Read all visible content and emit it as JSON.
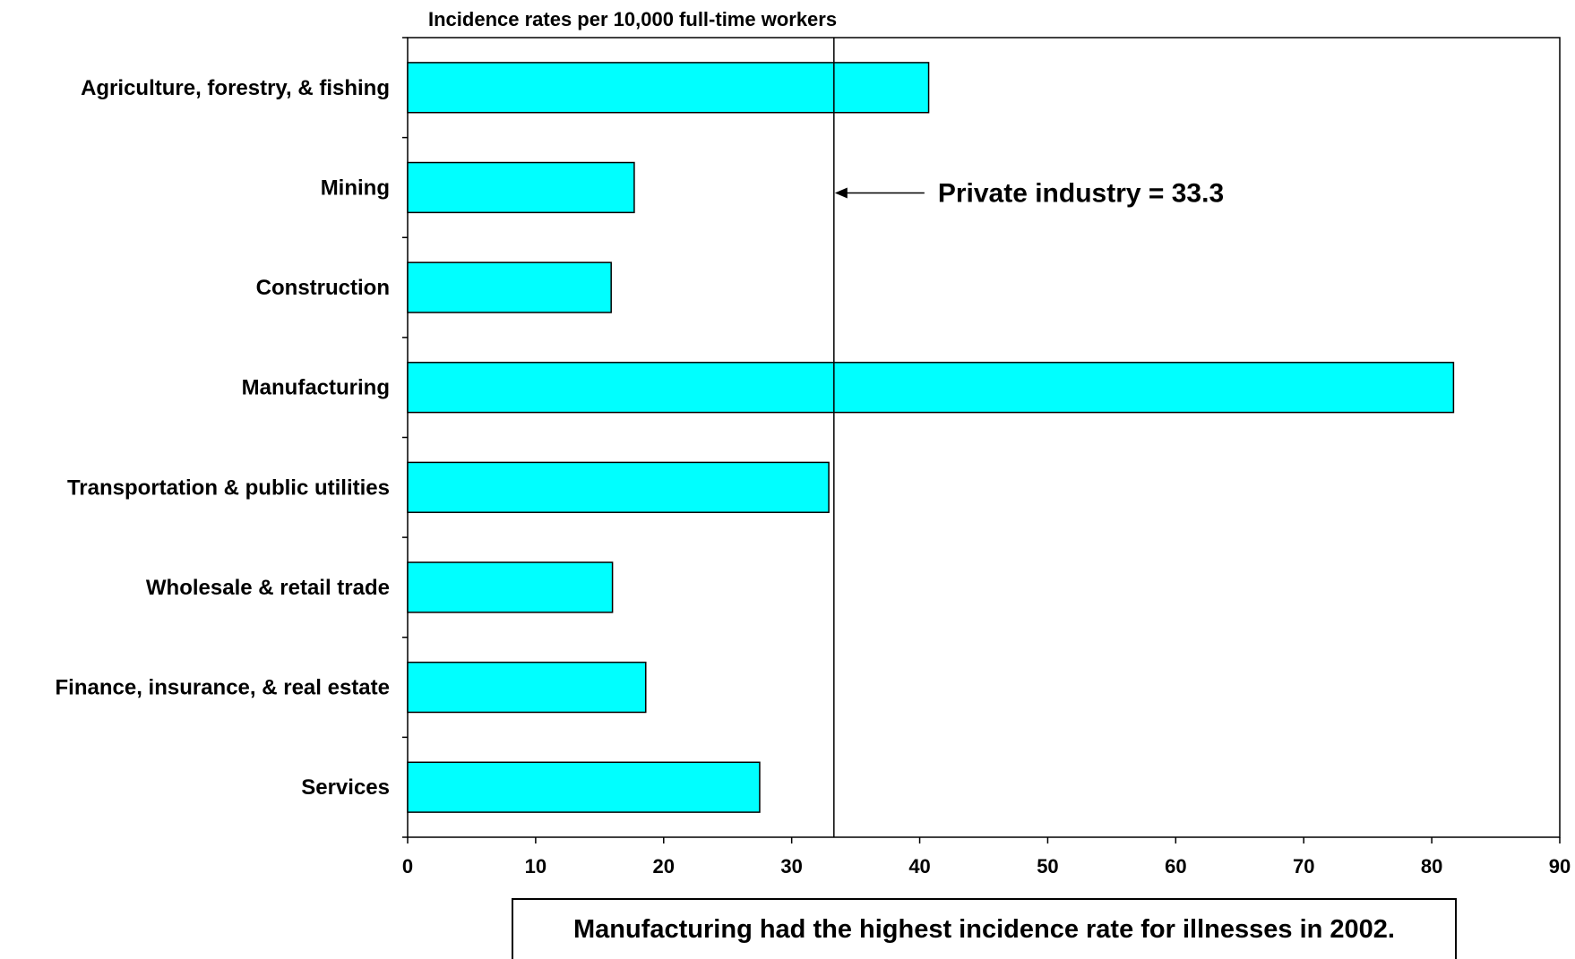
{
  "chart_data": {
    "type": "bar",
    "orientation": "horizontal",
    "title": "Incidence rates per 10,000 full-time workers",
    "categories": [
      "Agriculture, forestry, & fishing",
      "Mining",
      "Construction",
      "Manufacturing",
      "Transportation & public utilities",
      "Wholesale & retail trade",
      "Finance, insurance, & real estate",
      "Services"
    ],
    "values": [
      40.7,
      17.7,
      15.9,
      81.7,
      32.9,
      16.0,
      18.6,
      27.5
    ],
    "xlim": [
      0,
      90
    ],
    "xticks": [
      "0",
      "10",
      "20",
      "30",
      "40",
      "50",
      "60",
      "70",
      "80",
      "90"
    ],
    "reference_line": {
      "value": 33.3,
      "label": "Private industry = 33.3"
    },
    "grid": false,
    "legend": "none",
    "colors": {
      "bar_fill": "#00FFFF",
      "bar_stroke": "#000000"
    }
  },
  "caption": "Manufacturing had the highest incidence rate for illnesses in 2002."
}
